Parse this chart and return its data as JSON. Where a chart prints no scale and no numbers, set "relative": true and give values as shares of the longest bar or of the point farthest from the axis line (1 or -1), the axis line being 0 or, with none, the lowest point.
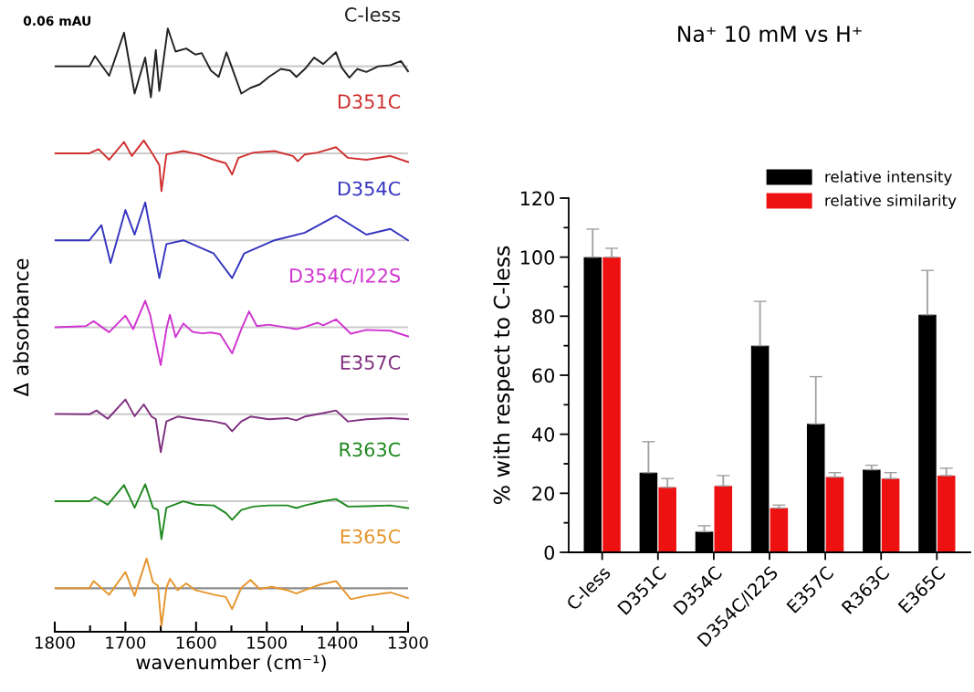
{
  "chart_data": [
    {
      "type": "line",
      "relative": true,
      "tick_labels": false,
      "xlim": [
        1800,
        1300
      ],
      "annotations": [
        "0.06 mAU"
      ],
      "ref_lines": [
        {
          "axis": "y",
          "value": 0,
          "color": "#cccccc"
        }
      ],
      "x": [
        1799,
        1751,
        1743,
        1723,
        1702,
        1687,
        1672,
        1664,
        1657,
        1652,
        1640,
        1629,
        1614,
        1601,
        1592,
        1579,
        1568,
        1557,
        1547,
        1536,
        1523,
        1510,
        1497,
        1480,
        1467,
        1458,
        1446,
        1433,
        1420,
        1402,
        1394,
        1383,
        1372,
        1359,
        1342,
        1325,
        1310,
        1300
      ],
      "series": [
        {
          "name": "C-less",
          "color": "#222222",
          "values": [
            0,
            0,
            0.27,
            -0.25,
            0.89,
            -0.72,
            0.23,
            -0.82,
            0.43,
            -0.65,
            1.0,
            0.39,
            0.47,
            0.31,
            0.35,
            -0.11,
            -0.28,
            0.37,
            -0.15,
            -0.72,
            -0.57,
            -0.48,
            -0.28,
            -0.07,
            -0.11,
            -0.28,
            -0.07,
            0.23,
            0.06,
            0.37,
            -0.03,
            -0.3,
            -0.07,
            -0.15,
            0,
            0.03,
            0.14,
            -0.13
          ]
        }
      ]
    },
    {
      "type": "line",
      "relative": true,
      "tick_labels": false,
      "xlim": [
        1800,
        1300
      ],
      "ref_lines": [
        {
          "axis": "y",
          "value": 0,
          "color": "#cccccc"
        }
      ],
      "x": [
        1799,
        1751,
        1738,
        1723,
        1702,
        1691,
        1674,
        1661,
        1652,
        1649,
        1642,
        1618,
        1596,
        1575,
        1558,
        1549,
        1540,
        1519,
        1489,
        1463,
        1456,
        1446,
        1428,
        1402,
        1385,
        1359,
        1325,
        1300
      ],
      "series": [
        {
          "name": "D351C",
          "color": "#d03030",
          "values": [
            0,
            0,
            0.11,
            -0.17,
            0.3,
            -0.07,
            0.34,
            -0.03,
            -0.31,
            -1.0,
            -0.03,
            0.06,
            -0.03,
            -0.17,
            -0.26,
            -0.56,
            -0.12,
            0.02,
            0.06,
            -0.07,
            -0.21,
            -0.03,
            0.02,
            0.16,
            -0.12,
            -0.17,
            -0.07,
            -0.23
          ]
        }
      ]
    },
    {
      "type": "line",
      "relative": true,
      "tick_labels": false,
      "xlim": [
        1800,
        1300
      ],
      "ref_lines": [
        {
          "axis": "y",
          "value": 0,
          "color": "#cccccc"
        }
      ],
      "x": [
        1799,
        1751,
        1734,
        1721,
        1700,
        1687,
        1672,
        1661,
        1652,
        1642,
        1618,
        1575,
        1549,
        1532,
        1489,
        1446,
        1402,
        1359,
        1325,
        1300
      ],
      "series": [
        {
          "name": "D354C",
          "color": "#3535c0",
          "values": [
            0,
            0,
            0.4,
            -0.6,
            0.8,
            0.15,
            1.0,
            -0.1,
            -1.0,
            -0.1,
            0,
            -0.35,
            -1.0,
            -0.35,
            0,
            0.2,
            0.65,
            0.15,
            0.3,
            0
          ]
        }
      ]
    },
    {
      "type": "line",
      "relative": true,
      "tick_labels": false,
      "xlim": [
        1800,
        1300
      ],
      "ylabel": "Δ absorbance",
      "ref_lines": [
        {
          "axis": "y",
          "value": 0,
          "color": "#cccccc"
        }
      ],
      "x": [
        1799,
        1756,
        1745,
        1723,
        1700,
        1689,
        1672,
        1665,
        1659,
        1650,
        1642,
        1637,
        1629,
        1618,
        1605,
        1592,
        1579,
        1566,
        1549,
        1536,
        1525,
        1514,
        1497,
        1471,
        1458,
        1446,
        1428,
        1420,
        1402,
        1381,
        1359,
        1325,
        1300
      ],
      "series": [
        {
          "name": "D354C/I22S",
          "color": "#d035d0",
          "values": [
            0,
            0.03,
            0.16,
            -0.13,
            0.31,
            -0.05,
            0.7,
            0.33,
            -0.22,
            -1.0,
            -0.05,
            0.33,
            -0.26,
            0.1,
            -0.12,
            -0.16,
            -0.14,
            -0.18,
            -0.69,
            -0.05,
            0.42,
            0.03,
            0.07,
            -0.01,
            -0.05,
            0.01,
            0.12,
            0.05,
            0.21,
            -0.17,
            -0.07,
            -0.09,
            -0.24
          ]
        }
      ]
    },
    {
      "type": "line",
      "relative": true,
      "tick_labels": false,
      "xlim": [
        1800,
        1300
      ],
      "ref_lines": [
        {
          "axis": "y",
          "value": 0,
          "color": "#cccccc"
        }
      ],
      "x": [
        1799,
        1751,
        1741,
        1725,
        1700,
        1687,
        1674,
        1663,
        1657,
        1650,
        1642,
        1626,
        1601,
        1575,
        1558,
        1549,
        1536,
        1523,
        1497,
        1471,
        1458,
        1446,
        1420,
        1402,
        1385,
        1359,
        1325,
        1300
      ],
      "series": [
        {
          "name": "E357C",
          "color": "#803080",
          "values": [
            0.01,
            0,
            0.1,
            -0.12,
            0.39,
            -0.05,
            0.26,
            -0.06,
            -0.13,
            -1.0,
            -0.19,
            -0.06,
            -0.13,
            -0.19,
            -0.26,
            -0.45,
            -0.19,
            -0.06,
            -0.13,
            -0.1,
            -0.16,
            -0.06,
            0.03,
            0.1,
            -0.19,
            -0.13,
            -0.1,
            -0.13
          ]
        }
      ]
    },
    {
      "type": "line",
      "relative": true,
      "tick_labels": false,
      "xlim": [
        1800,
        1300
      ],
      "ref_lines": [
        {
          "axis": "y",
          "value": 0,
          "color": "#cccccc"
        }
      ],
      "x": [
        1799,
        1751,
        1743,
        1725,
        1702,
        1687,
        1672,
        1661,
        1654,
        1649,
        1642,
        1618,
        1601,
        1575,
        1558,
        1549,
        1536,
        1519,
        1497,
        1471,
        1458,
        1446,
        1420,
        1402,
        1385,
        1359,
        1325,
        1300
      ],
      "series": [
        {
          "name": "R363C",
          "color": "#208a20",
          "values": [
            0,
            0,
            0.11,
            -0.09,
            0.43,
            -0.17,
            0.45,
            -0.17,
            -0.23,
            -1.0,
            -0.17,
            0,
            -0.09,
            -0.11,
            -0.31,
            -0.49,
            -0.23,
            -0.14,
            -0.11,
            -0.11,
            -0.18,
            -0.11,
            0,
            0.06,
            -0.14,
            -0.13,
            -0.11,
            -0.18
          ]
        }
      ]
    },
    {
      "type": "line",
      "relative": true,
      "tick_labels": "x",
      "xlim": [
        1800,
        1300
      ],
      "xticks": [
        1800,
        1700,
        1600,
        1500,
        1400,
        1300
      ],
      "xlabel": "wavenumber (cm⁻¹)",
      "ref_lines": [
        {
          "axis": "y",
          "value": 0,
          "color": "#8c8c8c"
        }
      ],
      "x": [
        1799,
        1751,
        1745,
        1723,
        1700,
        1687,
        1670,
        1661,
        1654,
        1649,
        1642,
        1637,
        1626,
        1614,
        1601,
        1575,
        1558,
        1549,
        1536,
        1523,
        1510,
        1493,
        1471,
        1458,
        1446,
        1424,
        1402,
        1381,
        1359,
        1325,
        1300
      ],
      "series": [
        {
          "name": "E365C",
          "color": "#e6952e",
          "values": [
            0,
            0,
            0.19,
            -0.17,
            0.43,
            -0.2,
            0.79,
            0.16,
            0.07,
            -1.0,
            0.01,
            0.25,
            -0.05,
            0.13,
            -0.05,
            -0.17,
            -0.23,
            -0.55,
            0.01,
            0.22,
            -0.02,
            0.04,
            -0.05,
            -0.14,
            -0.05,
            0.1,
            0.19,
            -0.29,
            -0.2,
            -0.11,
            -0.26
          ]
        }
      ]
    },
    {
      "type": "bar",
      "title": "Na⁺ 10 mM vs H⁺",
      "ylabel": "% with respect to C-less",
      "categories": [
        "C-less",
        "D351C",
        "D354C",
        "D354C/I22S",
        "E357C",
        "R363C",
        "E365C"
      ],
      "ylim": [
        0,
        120
      ],
      "yticks": [
        0,
        20,
        40,
        60,
        80,
        100,
        120
      ],
      "legend": "top right",
      "grid": false,
      "series": [
        {
          "name": "relative intensity",
          "color": "#000000",
          "values": [
            100,
            27,
            7,
            70,
            43.5,
            28,
            80.5
          ],
          "errors": [
            [
              100,
              109.5
            ],
            [
              27,
              37.5
            ],
            [
              7,
              9
            ],
            [
              70,
              85
            ],
            [
              43.5,
              59.5
            ],
            [
              28,
              29.5
            ],
            [
              80.5,
              95.5
            ]
          ]
        },
        {
          "name": "relative similarity",
          "color": "#ee1111",
          "values": [
            100,
            22,
            22.5,
            15,
            25.5,
            25,
            26
          ],
          "errors": [
            [
              100,
              103
            ],
            [
              22,
              25
            ],
            [
              22.5,
              26
            ],
            [
              15,
              16
            ],
            [
              25.5,
              27
            ],
            [
              25,
              27
            ],
            [
              26,
              28.5
            ]
          ]
        }
      ]
    }
  ]
}
